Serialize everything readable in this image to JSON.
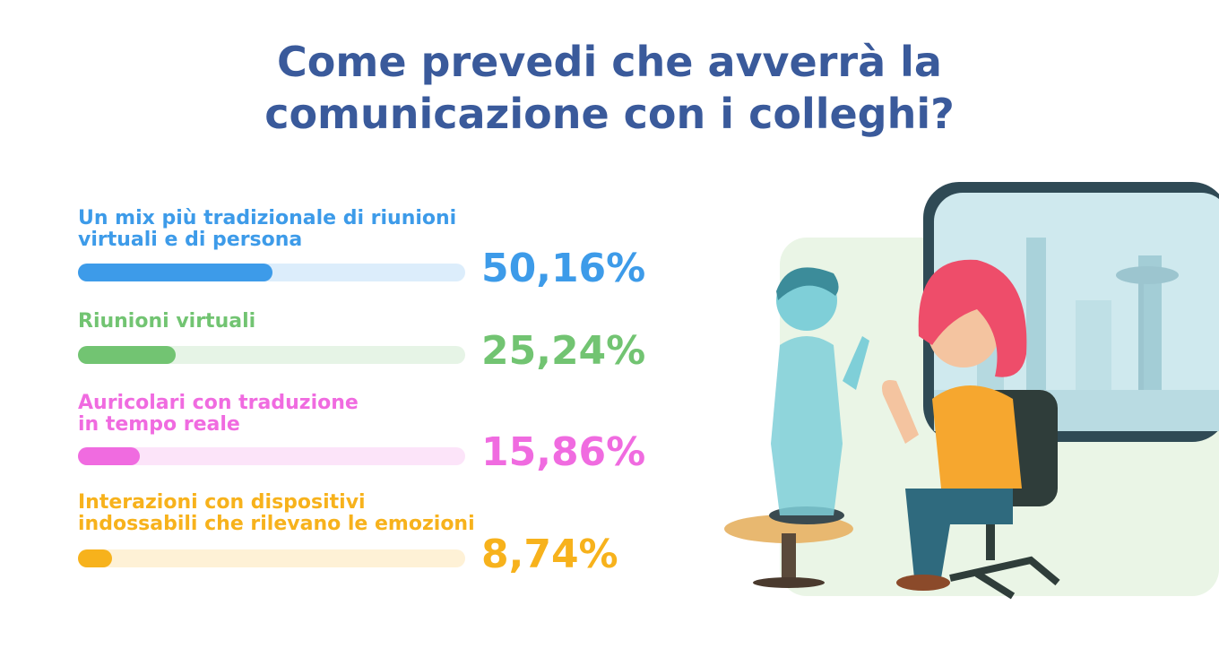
{
  "chart_data": {
    "type": "bar",
    "orientation": "horizontal",
    "title": "Come prevedi che avverrà la comunicazione con i colleghi?",
    "categories": [
      "Un mix più tradizionale di riunioni\nvirtuali e di persona",
      "Riunioni virtuali",
      "Auricolari con traduzione\nin tempo reale",
      "Interazioni con dispositivi\nindossabili che rilevano le emozioni"
    ],
    "values": [
      50.16,
      25.24,
      15.86,
      8.74
    ],
    "value_labels": [
      "50,16%",
      "25,24%",
      "15,86%",
      "8,74%"
    ],
    "colors": [
      "#3d9be9",
      "#72c472",
      "#f06be0",
      "#f7b21c"
    ],
    "xlim": [
      0,
      100
    ]
  }
}
